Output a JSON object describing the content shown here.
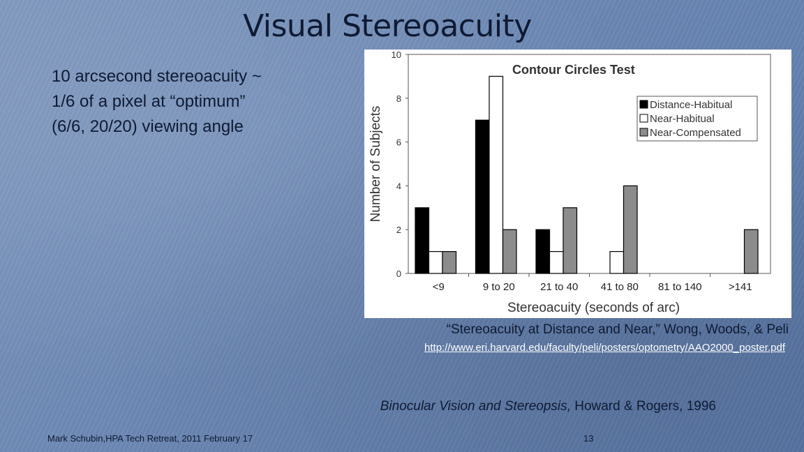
{
  "slide": {
    "title": "Visual Stereoacuity",
    "body_lines": [
      "10 arcsecond stereoacuity ~",
      "1/6 of a pixel at “optimum”",
      "(6/6, 20/20) viewing angle"
    ],
    "caption": "“Stereoacuity at Distance and Near,” Wong, Woods, & Peli",
    "link": "http://www.eri.harvard.edu/faculty/peli/posters/optometry/AAO2000_poster.pdf",
    "reference_title": "Binocular Vision and Stereopsis,",
    "reference_rest": " Howard & Rogers, 1996",
    "footer_left": "Mark Schubin,HPA Tech Retreat, 2011 February 17",
    "page_number": "13"
  },
  "chart_data": {
    "type": "bar",
    "title": "Contour Circles Test",
    "xlabel": "Stereoacuity (seconds of arc)",
    "ylabel": "Number of Subjects",
    "ylim": [
      0,
      10
    ],
    "yticks": [
      "0",
      "2",
      "4",
      "6",
      "8",
      "10"
    ],
    "categories": [
      "<9",
      "9  to 20",
      "21 to 40",
      "41 to 80",
      "81 to 140",
      ">141"
    ],
    "series": [
      {
        "name": "Distance-Habitual",
        "color": "#000000",
        "values": [
          3,
          7,
          2,
          0,
          0,
          0
        ]
      },
      {
        "name": "Near-Habitual",
        "color": "#ffffff",
        "values": [
          1,
          9,
          1,
          1,
          0,
          0
        ]
      },
      {
        "name": "Near-Compensated",
        "color": "#8c8c8c",
        "values": [
          1,
          2,
          3,
          4,
          0,
          2
        ]
      }
    ],
    "legend_position": "top-right",
    "grid": false
  }
}
